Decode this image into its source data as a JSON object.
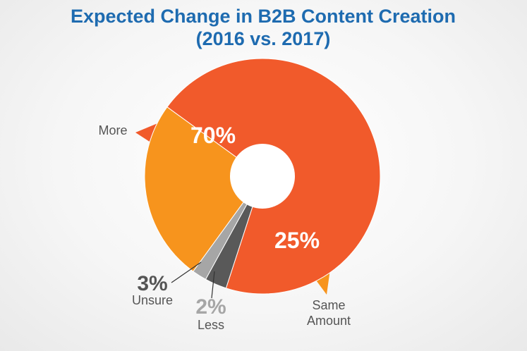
{
  "chart_data": {
    "type": "pie",
    "title": "Expected Change in B2B Content Creation",
    "subtitle": "(2016 vs. 2017)",
    "slices": [
      {
        "label": "More",
        "value": 70,
        "value_label": "70%",
        "color": "#f15a2b"
      },
      {
        "label": "Same Amount",
        "label_lines": [
          "Same",
          "Amount"
        ],
        "value": 25,
        "value_label": "25%",
        "color": "#f7941d"
      },
      {
        "label": "Less",
        "value": 2,
        "value_label": "2%",
        "color": "#a6a6a6"
      },
      {
        "label": "Unsure",
        "value": 3,
        "value_label": "3%",
        "color": "#595959"
      }
    ],
    "legend": "none"
  },
  "colors": {
    "title": "#1e6bb0",
    "background": "#f4f4f4",
    "callout_orange": "#f15a2b",
    "callout_amber": "#f7941d"
  }
}
